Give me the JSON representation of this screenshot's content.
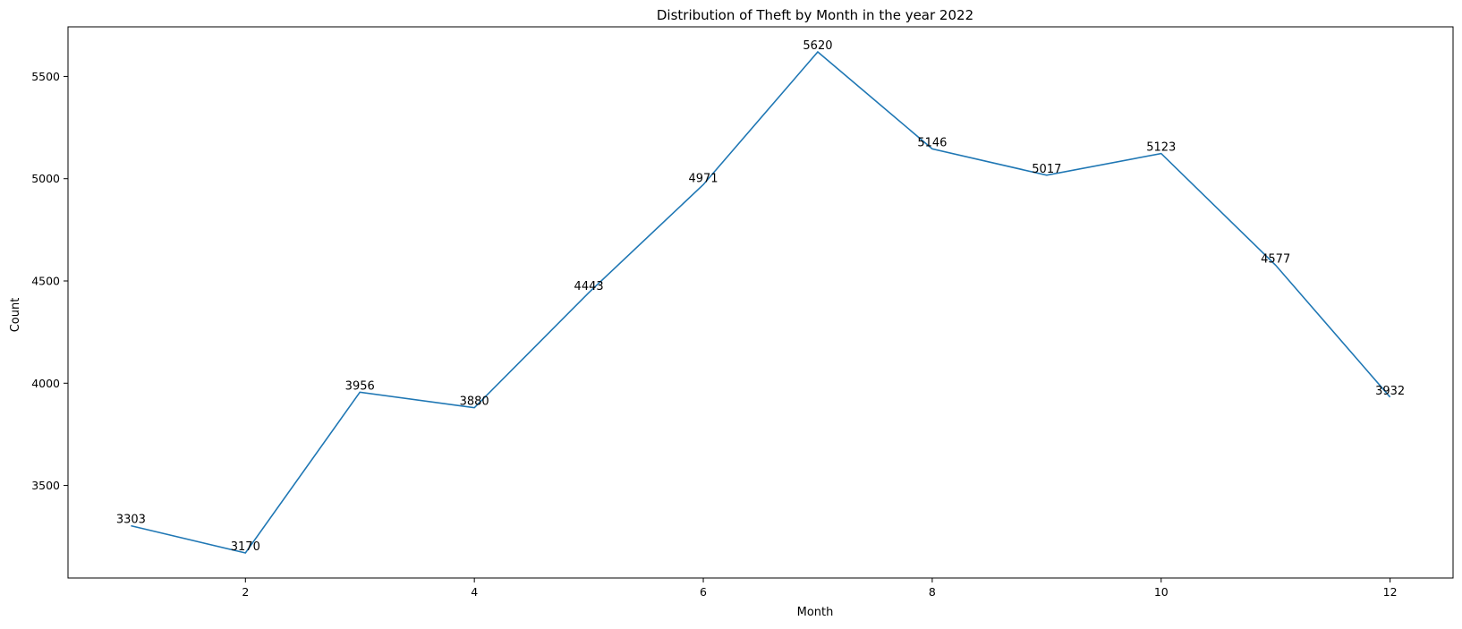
{
  "chart_data": {
    "type": "line",
    "title": "Distribution of Theft by Month in the year 2022",
    "xlabel": "Month",
    "ylabel": "Count",
    "x": [
      1,
      2,
      3,
      4,
      5,
      6,
      7,
      8,
      9,
      10,
      11,
      12
    ],
    "series": [
      {
        "values": [
          3303,
          3170,
          3956,
          3880,
          4443,
          4971,
          5620,
          5146,
          5017,
          5123,
          4577,
          3932
        ]
      }
    ],
    "data_labels": [
      "3303",
      "3170",
      "3956",
      "3880",
      "4443",
      "4971",
      "5620",
      "5146",
      "5017",
      "5123",
      "4577",
      "3932"
    ],
    "xticks": [
      2,
      4,
      6,
      8,
      10,
      12
    ],
    "xtick_labels": [
      "2",
      "4",
      "6",
      "8",
      "10",
      "12"
    ],
    "yticks": [
      3500,
      4000,
      4500,
      5000,
      5500
    ],
    "ytick_labels": [
      "3500",
      "4000",
      "4500",
      "5000",
      "5500"
    ],
    "xlim": [
      0.45,
      12.55
    ],
    "ylim": [
      3047.5,
      5742.5
    ],
    "grid": false,
    "line_color": "#1f77b4"
  }
}
